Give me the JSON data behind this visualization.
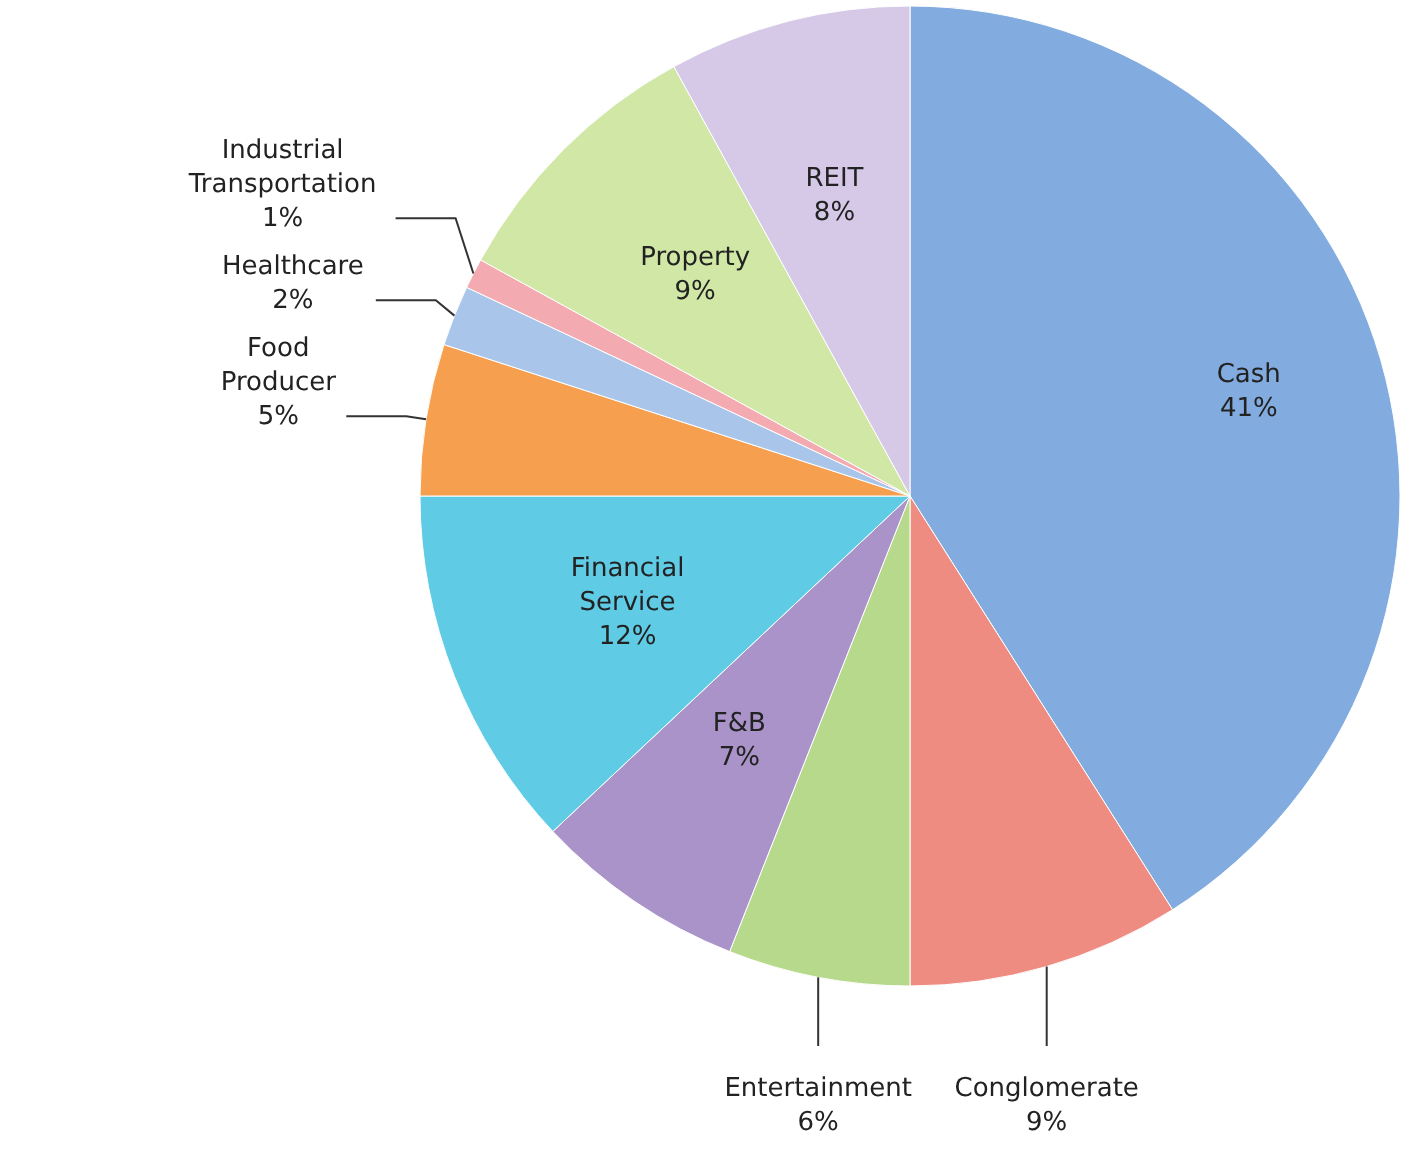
{
  "chart_data": {
    "type": "pie",
    "categories": [
      "Cash",
      "Conglomerate",
      "Entertainment",
      "F&B",
      "Financial Service",
      "Food Producer",
      "Healthcare",
      "Industrial Transportation",
      "Property",
      "REIT"
    ],
    "values": [
      41,
      9,
      6,
      7,
      12,
      5,
      2,
      1,
      9,
      8
    ],
    "colors": [
      "#82acdf",
      "#ee8c82",
      "#b6d98c",
      "#a993c9",
      "#5fcbe4",
      "#f6a04f",
      "#a9c5ea",
      "#f3aab0",
      "#d0e7a6",
      "#d6c9e8"
    ],
    "value_labels": [
      "41%",
      "9%",
      "6%",
      "7%",
      "12%",
      "5%",
      "2%",
      "1%",
      "9%",
      "8%"
    ]
  }
}
